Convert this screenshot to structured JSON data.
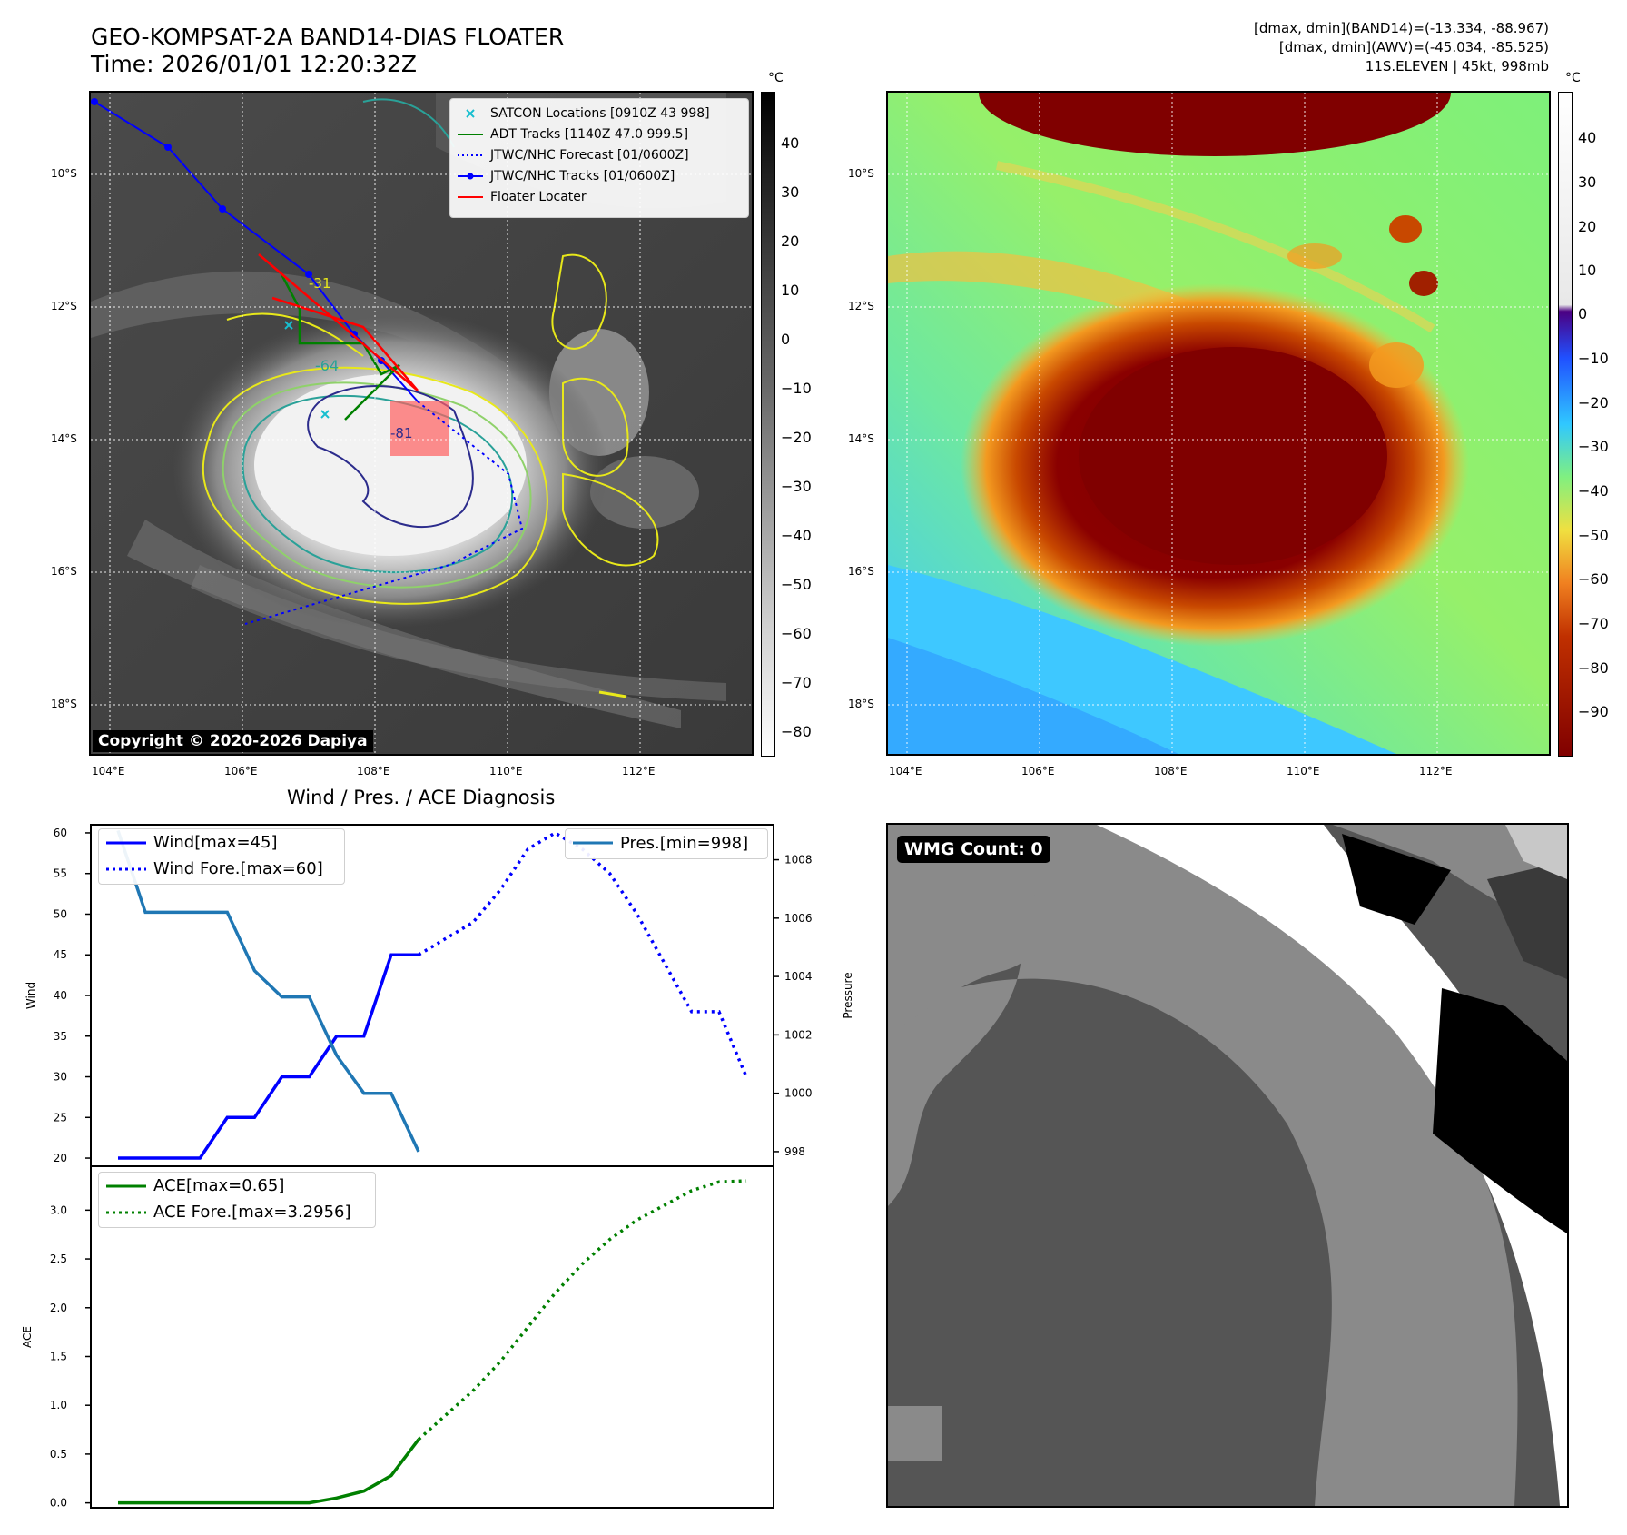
{
  "header": {
    "title_line1": "GEO-KOMPSAT-2A BAND14-DIAS FLOATER",
    "title_line2": "Time: 2026/01/01 12:20:32Z",
    "info_line1": "[dmax, dmin](BAND14)=(-13.334, -88.967)",
    "info_line2": "[dmax, dmin](AWV)=(-45.034, -85.525)",
    "info_line3": "11S.ELEVEN | 45kt, 998mb"
  },
  "ir_panel": {
    "copyright": "Copyright © 2020-2026 Dapiya",
    "lat_labels": [
      "10°S",
      "12°S",
      "14°S",
      "16°S",
      "18°S"
    ],
    "lon_labels": [
      "104°E",
      "106°E",
      "108°E",
      "110°E",
      "112°E"
    ],
    "colorbar_unit": "°C",
    "colorbar_ticks": [
      "40",
      "30",
      "20",
      "10",
      "0",
      "−10",
      "−20",
      "−30",
      "−40",
      "−50",
      "−60",
      "−70",
      "−80"
    ],
    "contour_labels": [
      "-31",
      "-64",
      "-81"
    ],
    "legend": [
      {
        "label": "SATCON Locations [0910Z 43 998]",
        "color": "#17becf"
      },
      {
        "label": "ADT Tracks [1140Z 47.0 999.5]",
        "color": "#008000"
      },
      {
        "label": "JTWC/NHC Forecast [01/0600Z]",
        "color": "#0000ff"
      },
      {
        "label": "JTWC/NHC Tracks [01/0600Z]",
        "color": "#0000ff"
      },
      {
        "label": "Floater Locater",
        "color": "#ff0000"
      }
    ]
  },
  "awv_panel": {
    "lat_labels": [
      "10°S",
      "12°S",
      "14°S",
      "16°S",
      "18°S"
    ],
    "lon_labels": [
      "104°E",
      "106°E",
      "108°E",
      "110°E",
      "112°E"
    ],
    "colorbar_unit": "°C",
    "colorbar_ticks": [
      "40",
      "30",
      "20",
      "10",
      "0",
      "−10",
      "−20",
      "−30",
      "−40",
      "−50",
      "−60",
      "−70",
      "−80",
      "−90"
    ]
  },
  "wmg_panel": {
    "label": "WMG Count: 0"
  },
  "chart_data": [
    {
      "type": "line",
      "title": "Wind / Pres. / ACE Diagnosis",
      "ylabel": "Wind",
      "ylabel_right": "Pressure",
      "ylim": [
        19,
        61
      ],
      "ylim_right": [
        997.5,
        1009.2
      ],
      "yticks": [
        20,
        25,
        30,
        35,
        40,
        45,
        50,
        55,
        60
      ],
      "yticks_right": [
        998,
        1000,
        1002,
        1004,
        1006,
        1008
      ],
      "series": [
        {
          "name": "Wind[max=45]",
          "style": "solid",
          "color": "#0000ff",
          "x": [
            0,
            1,
            2,
            3,
            4,
            5,
            6,
            7,
            8,
            9,
            10,
            11
          ],
          "values": [
            20,
            20,
            20,
            20,
            25,
            25,
            30,
            30,
            35,
            35,
            45,
            45
          ]
        },
        {
          "name": "Wind Fore.[max=60]",
          "style": "dotted",
          "color": "#0000ff",
          "x": [
            11,
            12,
            13,
            14,
            15,
            16,
            17,
            18,
            19,
            20,
            21,
            22,
            23
          ],
          "values": [
            45,
            47,
            49,
            53,
            58,
            60,
            58,
            55,
            50,
            44,
            38,
            38,
            30
          ]
        },
        {
          "name": "Pres.[min=998]",
          "style": "solid",
          "color": "#1f77b4",
          "axis": "right",
          "x": [
            0,
            1,
            2,
            3,
            4,
            5,
            6,
            7,
            8,
            9,
            10,
            11
          ],
          "values": [
            1009,
            1006.2,
            1006.2,
            1006.2,
            1006.2,
            1004.2,
            1003.3,
            1003.3,
            1001.3,
            1000,
            1000,
            998
          ]
        }
      ]
    },
    {
      "type": "line",
      "ylabel": "ACE",
      "ylim": [
        -0.05,
        3.45
      ],
      "yticks": [
        "0.0",
        "0.5",
        "1.0",
        "1.5",
        "2.0",
        "2.5",
        "3.0"
      ],
      "series": [
        {
          "name": "ACE[max=0.65]",
          "style": "solid",
          "color": "#008000",
          "x": [
            0,
            1,
            2,
            3,
            4,
            5,
            6,
            7,
            8,
            9,
            10,
            11
          ],
          "values": [
            0,
            0,
            0,
            0,
            0,
            0,
            0,
            0,
            0.05,
            0.12,
            0.28,
            0.65
          ]
        },
        {
          "name": "ACE Fore.[max=3.2956]",
          "style": "dotted",
          "color": "#008000",
          "x": [
            11,
            12,
            13,
            14,
            15,
            16,
            17,
            18,
            19,
            20,
            21,
            22,
            23
          ],
          "values": [
            0.65,
            0.9,
            1.15,
            1.45,
            1.8,
            2.15,
            2.45,
            2.7,
            2.9,
            3.05,
            3.2,
            3.29,
            3.3
          ]
        }
      ]
    }
  ]
}
